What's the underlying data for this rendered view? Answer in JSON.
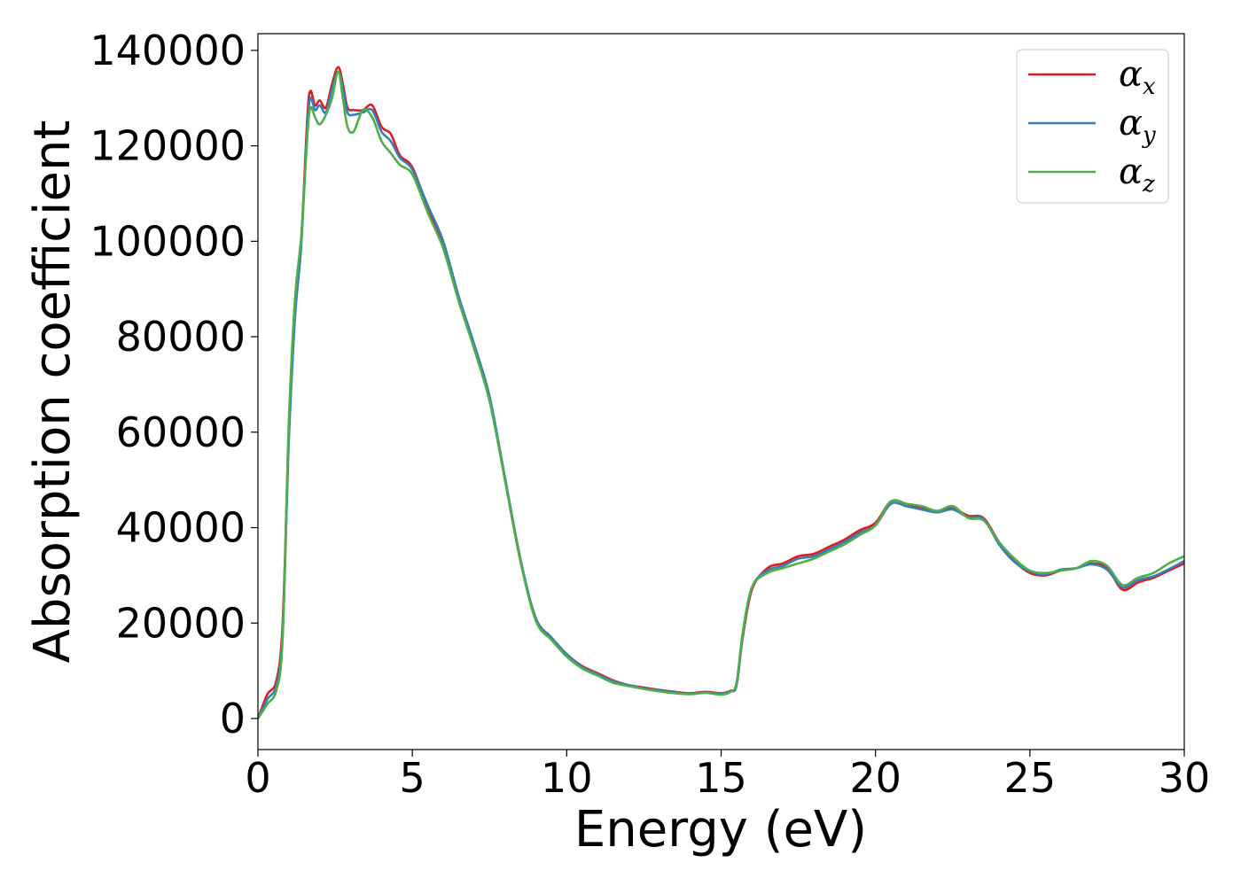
{
  "chart_data": {
    "type": "line",
    "title": "",
    "xlabel": "Energy (eV)",
    "ylabel": "Absorption coefficient",
    "xlim": [
      0,
      30
    ],
    "ylim": [
      -6500,
      143500
    ],
    "xticks": [
      0,
      5,
      10,
      15,
      20,
      25,
      30
    ],
    "xtick_labels": [
      "0",
      "5",
      "10",
      "15",
      "20",
      "25",
      "30"
    ],
    "yticks": [
      0,
      20000,
      40000,
      60000,
      80000,
      100000,
      120000,
      140000
    ],
    "ytick_labels": [
      "0",
      "20000",
      "40000",
      "60000",
      "80000",
      "100000",
      "120000",
      "140000"
    ],
    "grid": false,
    "legend_position": "top-right",
    "series": [
      {
        "name": "α",
        "subscript": "x",
        "color": "#e41a1c",
        "x": [
          0,
          0.3,
          0.6,
          0.8,
          1.0,
          1.2,
          1.4,
          1.6,
          1.7,
          1.85,
          2.0,
          2.2,
          2.4,
          2.6,
          2.75,
          2.9,
          3.1,
          3.4,
          3.7,
          4.0,
          4.3,
          4.6,
          5.0,
          5.5,
          6.0,
          6.5,
          7.0,
          7.5,
          8.0,
          8.5,
          9.0,
          9.5,
          10.0,
          10.5,
          11.0,
          11.5,
          12.0,
          12.5,
          13.0,
          13.5,
          14.0,
          14.5,
          15.0,
          15.3,
          15.5,
          15.7,
          16.0,
          16.5,
          17.0,
          17.5,
          18.0,
          18.5,
          19.0,
          19.5,
          20.0,
          20.5,
          21.0,
          21.5,
          22.0,
          22.5,
          23.0,
          23.5,
          24.0,
          24.5,
          25.0,
          25.5,
          26.0,
          26.5,
          27.0,
          27.5,
          28.0,
          28.5,
          29.0,
          29.5,
          30.0
        ],
        "y": [
          0,
          5000,
          8000,
          20000,
          60000,
          85000,
          100000,
          126000,
          131500,
          128500,
          129500,
          128000,
          133000,
          136500,
          133000,
          128000,
          127500,
          127500,
          128500,
          124000,
          122500,
          118000,
          115500,
          107000,
          99500,
          88000,
          78000,
          67000,
          50000,
          33000,
          21000,
          17000,
          13500,
          11000,
          9500,
          8000,
          7000,
          6500,
          6000,
          5600,
          5300,
          5600,
          5300,
          5800,
          7000,
          17000,
          27000,
          31500,
          32500,
          34000,
          34500,
          36000,
          37500,
          39500,
          41000,
          45500,
          45000,
          44000,
          43500,
          44000,
          42500,
          42000,
          37000,
          33000,
          30500,
          30000,
          31000,
          31500,
          32500,
          31500,
          27000,
          28500,
          29500,
          31000,
          32500
        ]
      },
      {
        "name": "α",
        "subscript": "y",
        "color": "#377eb8",
        "x": [
          0,
          0.3,
          0.6,
          0.8,
          1.0,
          1.2,
          1.4,
          1.6,
          1.7,
          1.85,
          2.0,
          2.2,
          2.4,
          2.6,
          2.75,
          2.9,
          3.1,
          3.4,
          3.7,
          4.0,
          4.3,
          4.6,
          5.0,
          5.5,
          6.0,
          6.5,
          7.0,
          7.5,
          8.0,
          8.5,
          9.0,
          9.5,
          10.0,
          10.5,
          11.0,
          11.5,
          12.0,
          12.5,
          13.0,
          13.5,
          14.0,
          14.5,
          15.0,
          15.3,
          15.5,
          15.7,
          16.0,
          16.5,
          17.0,
          17.5,
          18.0,
          18.5,
          19.0,
          19.5,
          20.0,
          20.5,
          21.0,
          21.5,
          22.0,
          22.5,
          23.0,
          23.5,
          24.0,
          24.5,
          25.0,
          25.5,
          26.0,
          26.5,
          27.0,
          27.5,
          28.0,
          28.5,
          29.0,
          29.5,
          30.0
        ],
        "y": [
          0,
          4000,
          7000,
          18000,
          58000,
          84000,
          99000,
          124000,
          130000,
          127500,
          128500,
          127000,
          132000,
          135500,
          132000,
          127000,
          126500,
          127000,
          127500,
          123000,
          121000,
          117500,
          115000,
          107500,
          100000,
          88500,
          78500,
          67500,
          50500,
          33500,
          21000,
          17000,
          13500,
          10800,
          9300,
          7800,
          7000,
          6300,
          5900,
          5500,
          5200,
          5500,
          5200,
          5700,
          7000,
          17500,
          27500,
          31000,
          32000,
          33500,
          34000,
          35500,
          37000,
          39000,
          40500,
          45000,
          44500,
          43800,
          43200,
          43800,
          42200,
          41800,
          36500,
          32800,
          30800,
          30200,
          31200,
          31500,
          32300,
          31200,
          27500,
          29000,
          29800,
          31300,
          33000
        ]
      },
      {
        "name": "α",
        "subscript": "z",
        "color": "#4daf4a",
        "x": [
          0,
          0.3,
          0.6,
          0.8,
          1.0,
          1.2,
          1.4,
          1.6,
          1.7,
          1.85,
          2.0,
          2.2,
          2.4,
          2.6,
          2.75,
          2.9,
          3.1,
          3.4,
          3.7,
          4.0,
          4.3,
          4.6,
          5.0,
          5.5,
          6.0,
          6.5,
          7.0,
          7.5,
          8.0,
          8.5,
          9.0,
          9.5,
          10.0,
          10.5,
          11.0,
          11.5,
          12.0,
          12.5,
          13.0,
          13.5,
          14.0,
          14.5,
          15.0,
          15.3,
          15.5,
          15.7,
          16.0,
          16.5,
          17.0,
          17.5,
          18.0,
          18.5,
          19.0,
          19.5,
          20.0,
          20.5,
          21.0,
          21.5,
          22.0,
          22.5,
          23.0,
          23.5,
          24.0,
          24.5,
          25.0,
          25.5,
          26.0,
          26.5,
          27.0,
          27.5,
          28.0,
          28.5,
          29.0,
          29.5,
          30.0
        ],
        "y": [
          0,
          3000,
          6000,
          17000,
          62000,
          88000,
          101000,
          122000,
          128000,
          126000,
          124500,
          126500,
          130000,
          135500,
          130000,
          124000,
          123000,
          127500,
          126000,
          121000,
          118500,
          116000,
          114000,
          106000,
          98500,
          87500,
          77500,
          66500,
          50000,
          33000,
          20500,
          16500,
          13000,
          10500,
          9000,
          7500,
          6800,
          6200,
          5700,
          5300,
          5100,
          5400,
          5000,
          5600,
          7500,
          18000,
          27500,
          30500,
          31500,
          32500,
          33500,
          35000,
          36500,
          38500,
          40500,
          45500,
          45000,
          44500,
          43500,
          44500,
          42000,
          41500,
          37000,
          33500,
          31000,
          30500,
          31000,
          31500,
          33000,
          32000,
          28000,
          29500,
          30500,
          32500,
          34000
        ]
      }
    ]
  }
}
